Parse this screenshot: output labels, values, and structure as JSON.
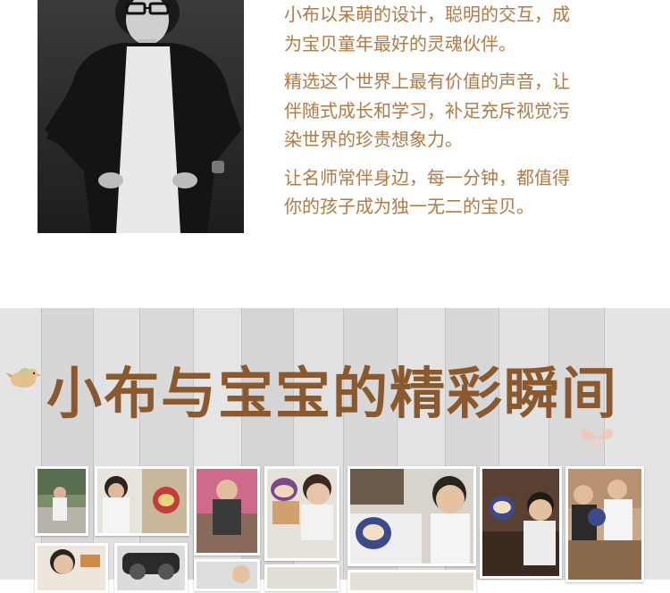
{
  "description_lines": [
    "小布以呆萌的设计，聪明的交互，成",
    "为宝贝童年最好的灵魂伙伴。",
    "精选这个世界上最有价值的声音，让",
    "伴随式成长和学习，补足充斥视觉污",
    "染世界的珍贵想象力。",
    "让名师常伴身边，每一分钟，都值得",
    "你的孩子成为独一无二的宝贝。"
  ],
  "section_title": "小布与宝宝的精彩瞬间",
  "colors": {
    "text_accent": "#b07a45",
    "title": "#8a5a2e",
    "wood_bg": "#dcdcdc"
  }
}
